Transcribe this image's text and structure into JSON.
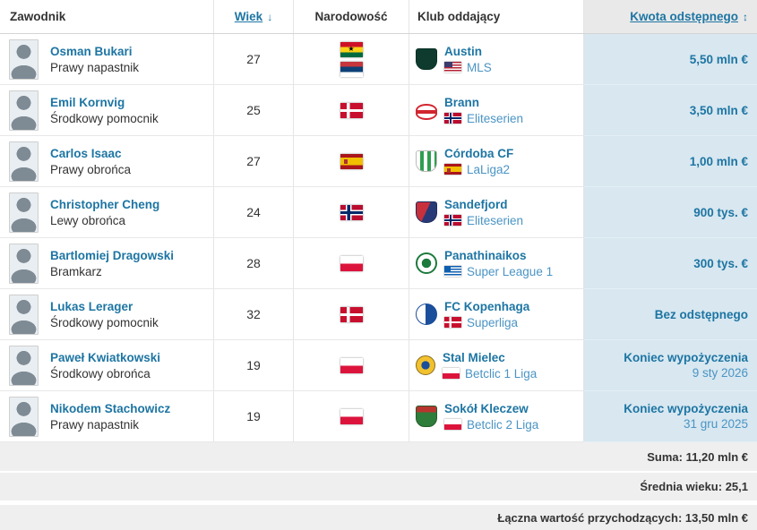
{
  "colors": {
    "link_blue": "#1d75a3",
    "league_blue": "#4a94c4",
    "fee_bg": "#d8e7f0",
    "header_sort_bg": "#e9e9e9",
    "footer_bg": "#efefef"
  },
  "header": {
    "columns": [
      {
        "label": "Zawodnik",
        "sortable": false
      },
      {
        "label": "Wiek",
        "sortable": true,
        "sort_icon": "↓"
      },
      {
        "label": "Narodowość",
        "sortable": false
      },
      {
        "label": "Klub oddający",
        "sortable": false
      },
      {
        "label": "Kwota odstępnego",
        "sortable": true,
        "sort_icon": "↕"
      }
    ]
  },
  "rows": [
    {
      "name": "Osman Bukari",
      "position": "Prawy napastnik",
      "age": "27",
      "nationalities": [
        {
          "name": "Ghana",
          "code": "gh"
        },
        {
          "name": "Serbia",
          "code": "rs"
        }
      ],
      "club": {
        "name": "Austin",
        "league": "MLS",
        "league_flag": "us",
        "logo": "austin"
      },
      "fee": {
        "line1": "5,50 mln €"
      }
    },
    {
      "name": "Emil Kornvig",
      "position": "Środkowy pomocnik",
      "age": "25",
      "nationalities": [
        {
          "name": "Dania",
          "code": "dk"
        }
      ],
      "club": {
        "name": "Brann",
        "league": "Eliteserien",
        "league_flag": "no",
        "logo": "brann"
      },
      "fee": {
        "line1": "3,50 mln €"
      }
    },
    {
      "name": "Carlos Isaac",
      "position": "Prawy obrońca",
      "age": "27",
      "nationalities": [
        {
          "name": "Hiszpania",
          "code": "es"
        }
      ],
      "club": {
        "name": "Córdoba CF",
        "league": "LaLiga2",
        "league_flag": "es",
        "logo": "cordoba"
      },
      "fee": {
        "line1": "1,00 mln €"
      }
    },
    {
      "name": "Christopher Cheng",
      "position": "Lewy obrońca",
      "age": "24",
      "nationalities": [
        {
          "name": "Norwegia",
          "code": "no"
        }
      ],
      "club": {
        "name": "Sandefjord",
        "league": "Eliteserien",
        "league_flag": "no",
        "logo": "sandefjord"
      },
      "fee": {
        "line1": "900 tys. €"
      }
    },
    {
      "name": "Bartlomiej Dragowski",
      "position": "Bramkarz",
      "age": "28",
      "nationalities": [
        {
          "name": "Polska",
          "code": "pl"
        }
      ],
      "club": {
        "name": "Panathinaikos",
        "league": "Super League 1",
        "league_flag": "gr",
        "logo": "panathinaikos"
      },
      "fee": {
        "line1": "300 tys. €"
      }
    },
    {
      "name": "Lukas Lerager",
      "position": "Środkowy pomocnik",
      "age": "32",
      "nationalities": [
        {
          "name": "Dania",
          "code": "dk"
        }
      ],
      "club": {
        "name": "FC Kopenhaga",
        "league": "Superliga",
        "league_flag": "dk",
        "logo": "kopenhaga"
      },
      "fee": {
        "line1": "Bez odstępnego"
      }
    },
    {
      "name": "Paweł Kwiatkowski",
      "position": "Środkowy obrońca",
      "age": "19",
      "nationalities": [
        {
          "name": "Polska",
          "code": "pl"
        }
      ],
      "club": {
        "name": "Stal Mielec",
        "league": "Betclic 1 Liga",
        "league_flag": "pl",
        "logo": "stal"
      },
      "fee": {
        "line1": "Koniec wypożyczenia",
        "line2": "9 sty 2026"
      }
    },
    {
      "name": "Nikodem Stachowicz",
      "position": "Prawy napastnik",
      "age": "19",
      "nationalities": [
        {
          "name": "Polska",
          "code": "pl"
        }
      ],
      "club": {
        "name": "Sokół Kleczew",
        "league": "Betclic 2 Liga",
        "league_flag": "pl",
        "logo": "sokol"
      },
      "fee": {
        "line1": "Koniec wypożyczenia",
        "line2": "31 gru 2025"
      }
    }
  ],
  "footer": [
    "Suma: 11,20 mln €",
    "Średnia wieku: 25,1",
    "Łączna wartość przychodzących: 13,50 mln €"
  ]
}
